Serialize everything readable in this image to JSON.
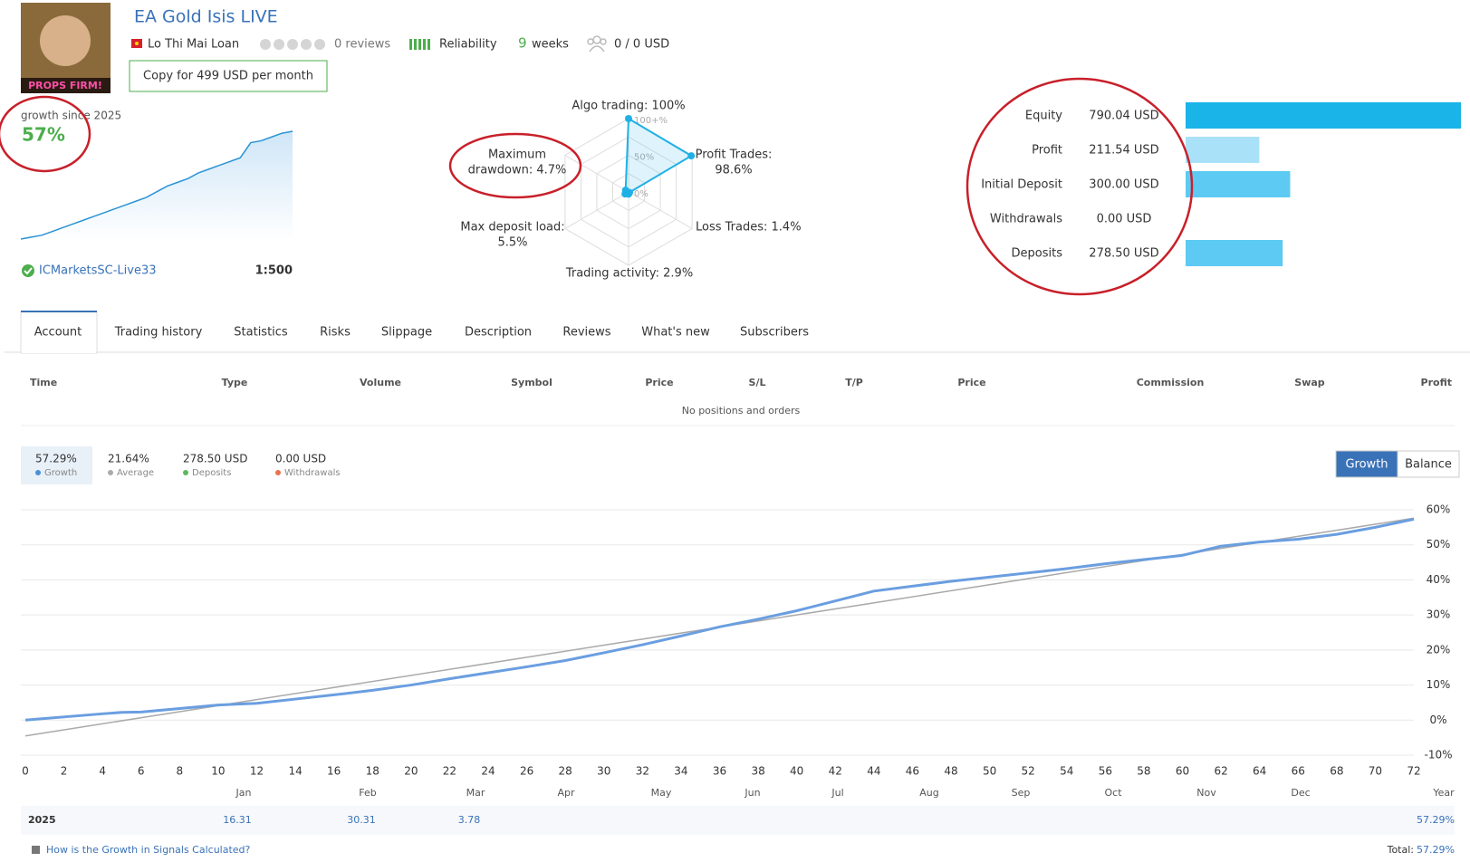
{
  "header": {
    "title": "EA Gold Isis LIVE",
    "logo_text": "PROPS FIRM!",
    "author": "Lo Thi Mai Loan",
    "reviews": "0 reviews",
    "reliability": "Reliability",
    "weeks_count": "9",
    "weeks_label": "weeks",
    "subscribers": "0 / 0 USD",
    "copy_button": "Copy for 499 USD per month"
  },
  "broker": {
    "name": "ICMarketsSC-Live33",
    "leverage": "1:500"
  },
  "chart_data": [
    {
      "type": "sparkline",
      "title": "growth since 2025",
      "subtitle": "57%",
      "color": "#2a93d5",
      "values": [
        0,
        1,
        2,
        4,
        6,
        8,
        10,
        12,
        14,
        16,
        18,
        20,
        22,
        25,
        28,
        30,
        32,
        35,
        37,
        39,
        41,
        43,
        51,
        52,
        54,
        56,
        57
      ]
    },
    {
      "type": "radar",
      "color": "#1fb1e6",
      "rlim": [
        0,
        100
      ],
      "ticks": [
        {
          "value": 100,
          "label": "100+%"
        },
        {
          "value": 50,
          "label": "50%"
        },
        {
          "value": 0,
          "label": "0%"
        }
      ],
      "axes": [
        {
          "label_lines": [
            "Algo trading: 100%"
          ],
          "value": 100
        },
        {
          "label_lines": [
            "Profit Trades:",
            "98.6%"
          ],
          "value": 98.6
        },
        {
          "label_lines": [
            "Loss Trades: 1.4%"
          ],
          "value": 1.4
        },
        {
          "label_lines": [
            "Trading activity: 2.9%"
          ],
          "value": 2.9
        },
        {
          "label_lines": [
            "Max deposit load:",
            "5.5%"
          ],
          "value": 5.5
        },
        {
          "label_lines": [
            "Maximum",
            "drawdown: 4.7%"
          ],
          "value": 4.7
        }
      ]
    },
    {
      "type": "bar",
      "orientation": "horizontal",
      "xlim": [
        0,
        790.04
      ],
      "categories": [
        "Equity",
        "Profit",
        "Initial Deposit",
        "Withdrawals",
        "Deposits"
      ],
      "values": [
        790.04,
        211.54,
        300.0,
        0.0,
        278.5
      ],
      "value_labels": [
        "790.04 USD",
        "211.54 USD",
        "300.00 USD",
        "0.00 USD",
        "278.50 USD"
      ],
      "colors": [
        "#1ab4e8",
        "#a9e2f8",
        "#5ccaf2",
        "#5ccaf2",
        "#5ccaf2"
      ]
    },
    {
      "type": "line",
      "grid": true,
      "xlim": [
        0,
        72
      ],
      "ylim": [
        -10,
        60
      ],
      "xticks": [
        0,
        2,
        4,
        6,
        8,
        10,
        12,
        14,
        16,
        18,
        20,
        22,
        24,
        26,
        28,
        30,
        32,
        34,
        36,
        38,
        40,
        42,
        44,
        46,
        48,
        50,
        52,
        54,
        56,
        58,
        60,
        62,
        64,
        66,
        68,
        70,
        72
      ],
      "yticks": [
        {
          "value": 60,
          "label": "60%"
        },
        {
          "value": 50,
          "label": "50%"
        },
        {
          "value": 40,
          "label": "40%"
        },
        {
          "value": 30,
          "label": "30%"
        },
        {
          "value": 20,
          "label": "20%"
        },
        {
          "value": 10,
          "label": "10%"
        },
        {
          "value": 0,
          "label": "0%"
        },
        {
          "value": -10,
          "label": "-10%"
        }
      ],
      "series": [
        {
          "color": "#6a9ee0",
          "x": [
            0,
            4,
            5,
            6,
            8,
            10,
            12,
            14,
            16,
            18,
            20,
            22,
            24,
            26,
            28,
            30,
            32,
            34,
            36,
            38,
            40,
            42,
            44,
            46,
            48,
            50,
            52,
            54,
            56,
            58,
            60,
            62,
            64,
            66,
            68,
            70,
            72
          ],
          "values": [
            0,
            1.8,
            2.2,
            2.3,
            3.3,
            4.3,
            4.8,
            6,
            7.2,
            8.5,
            10,
            11.8,
            13.5,
            15.2,
            17,
            19.2,
            21.5,
            24,
            26.6,
            28.8,
            31.2,
            34,
            36.8,
            38.2,
            39.6,
            40.8,
            42,
            43.2,
            44.6,
            45.8,
            47,
            49.6,
            50.8,
            51.6,
            53,
            55,
            57.3
          ]
        },
        {
          "color": "#aaaaaa",
          "x": [
            0,
            72
          ],
          "values": [
            -4.5,
            57.6
          ]
        }
      ]
    }
  ],
  "tabs": {
    "items": [
      "Account",
      "Trading history",
      "Statistics",
      "Risks",
      "Slippage",
      "Description",
      "Reviews",
      "What's new",
      "Subscribers"
    ],
    "active": 0
  },
  "table": {
    "columns": [
      "Time",
      "Type",
      "Volume",
      "Symbol",
      "Price",
      "S/L",
      "T/P",
      "Price",
      "Commission",
      "Swap",
      "Profit"
    ],
    "empty": "No positions and orders"
  },
  "summary": [
    {
      "value": "57.29%",
      "label": "Growth",
      "color": "#4a90d9"
    },
    {
      "value": "21.64%",
      "label": "Average",
      "color": "#aaaaaa"
    },
    {
      "value": "278.50 USD",
      "label": "Deposits",
      "color": "#5cb85c"
    },
    {
      "value": "0.00 USD",
      "label": "Withdrawals",
      "color": "#e8734a"
    }
  ],
  "toggle": {
    "items": [
      "Growth",
      "Balance"
    ],
    "active": 0
  },
  "months": [
    "Jan",
    "Feb",
    "Mar",
    "Apr",
    "May",
    "Jun",
    "Jul",
    "Aug",
    "Sep",
    "Oct",
    "Nov",
    "Dec",
    "Year"
  ],
  "year_row": {
    "year": "2025",
    "cells": [
      "16.31",
      "30.31",
      "3.78"
    ],
    "total": "57.29%"
  },
  "footer": {
    "link": "How is the Growth in Signals Calculated?",
    "total_label": "Total:",
    "total_value": "57.29%"
  }
}
